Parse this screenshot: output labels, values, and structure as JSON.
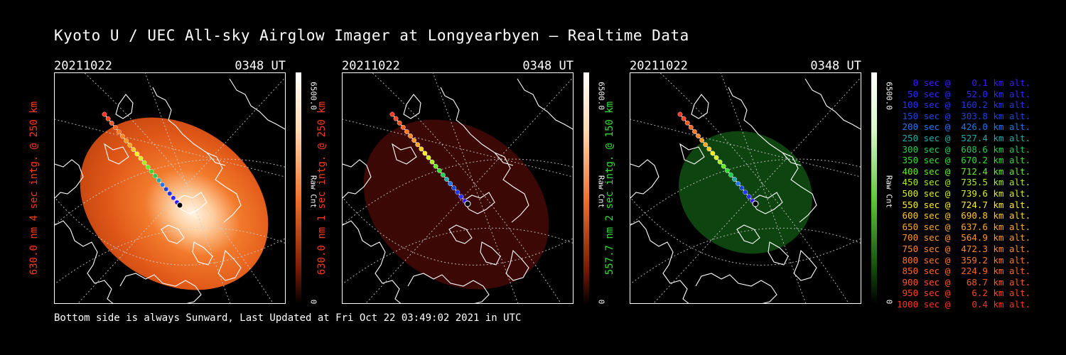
{
  "title": "Kyoto U / UEC All-sky Airglow Imager at Longyearbyen — Realtime Data",
  "footer": "Bottom side is always Sunward, Last Updated at Fri Oct 22 03:49:02 2021 in UTC",
  "panels": [
    {
      "date": "20211022",
      "time": "0348 UT",
      "label": "630.0 nm 4 sec intg. @ 250 km",
      "label_color": "#ff3a1a",
      "cbar_max": "6500.0",
      "cbar_unit": "Raw Cnt",
      "cbar_min": "0",
      "image": "red-airglow-bright"
    },
    {
      "date": "20211022",
      "time": "0348 UT",
      "label": "630.0 nm 1 sec intg. @ 250 km",
      "label_color": "#ff3a1a",
      "cbar_max": "6500.0",
      "cbar_unit": "Raw Cnt",
      "cbar_min": "0",
      "image": "red-airglow-dim"
    },
    {
      "date": "20211022",
      "time": "0348 UT",
      "label": "557.7 nm 2 sec intg. @ 150 km",
      "label_color": "#33dd33",
      "cbar_max": "6500.0",
      "cbar_unit": "Raw Cnt",
      "cbar_min": "0",
      "image": "green-airglow"
    }
  ],
  "legend": [
    {
      "text": "   0 sec @    0.1 km alt.",
      "color": "#3a1aff"
    },
    {
      "text": "  50 sec @   52.0 km alt.",
      "color": "#2a2aff"
    },
    {
      "text": " 100 sec @  160.2 km alt.",
      "color": "#2233ee"
    },
    {
      "text": " 150 sec @  303.8 km alt.",
      "color": "#1a44dd"
    },
    {
      "text": " 200 sec @  426.0 km alt.",
      "color": "#2277ee"
    },
    {
      "text": " 250 sec @  527.4 km alt.",
      "color": "#22aaaa"
    },
    {
      "text": " 300 sec @  608.6 km alt.",
      "color": "#22cc55"
    },
    {
      "text": " 350 sec @  670.2 km alt.",
      "color": "#33dd33"
    },
    {
      "text": " 400 sec @  712.4 km alt.",
      "color": "#66ee22"
    },
    {
      "text": " 450 sec @  735.5 km alt.",
      "color": "#aaee22"
    },
    {
      "text": " 500 sec @  739.6 km alt.",
      "color": "#ddee22"
    },
    {
      "text": " 550 sec @  724.7 km alt.",
      "color": "#ffee22"
    },
    {
      "text": " 600 sec @  690.8 km alt.",
      "color": "#ffcc22"
    },
    {
      "text": " 650 sec @  637.6 km alt.",
      "color": "#ffaa22"
    },
    {
      "text": " 700 sec @  564.9 km alt.",
      "color": "#ff9922"
    },
    {
      "text": " 750 sec @  472.3 km alt.",
      "color": "#ff8822"
    },
    {
      "text": " 800 sec @  359.2 km alt.",
      "color": "#ff7722"
    },
    {
      "text": " 850 sec @  224.9 km alt.",
      "color": "#ff6622"
    },
    {
      "text": " 900 sec @   68.7 km alt.",
      "color": "#ff5522"
    },
    {
      "text": " 950 sec @    6.2 km alt.",
      "color": "#ff4422"
    },
    {
      "text": "1000 sec @    0.4 km alt.",
      "color": "#ff3322"
    }
  ]
}
